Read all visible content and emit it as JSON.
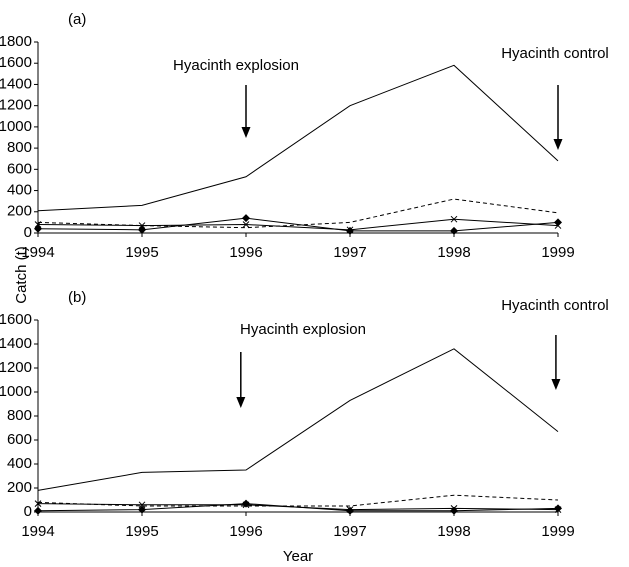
{
  "axis_labels": {
    "y": "Catch (t)",
    "x": "Year"
  },
  "chart_data": [
    {
      "type": "line",
      "panel_label": "(a)",
      "x": [
        1994,
        1995,
        1996,
        1997,
        1998,
        1999
      ],
      "xlim": [
        1994,
        1999
      ],
      "xticks": [
        1994,
        1995,
        1996,
        1997,
        1998,
        1999
      ],
      "ylim": [
        0,
        1800
      ],
      "yticks": [
        0,
        200,
        400,
        600,
        800,
        1000,
        1200,
        1400,
        1600,
        1800
      ],
      "series": [
        {
          "color": "#000000",
          "dash": "solid",
          "marker": "none",
          "values": [
            210,
            260,
            530,
            1200,
            1580,
            680
          ]
        },
        {
          "color": "#000000",
          "dash": "dashed",
          "marker": "none",
          "values": [
            100,
            70,
            50,
            100,
            320,
            190
          ]
        },
        {
          "color": "#000000",
          "dash": "solid",
          "marker": "diamond",
          "values": [
            40,
            30,
            140,
            20,
            20,
            100
          ]
        },
        {
          "color": "#000000",
          "dash": "solid",
          "marker": "x",
          "values": [
            80,
            70,
            80,
            30,
            130,
            70
          ]
        }
      ],
      "annotations": [
        {
          "text": "Hyacinth explosion",
          "x": 1996
        },
        {
          "text": "Hyacinth control",
          "x": 1999
        }
      ]
    },
    {
      "type": "line",
      "panel_label": "(b)",
      "x": [
        1994,
        1995,
        1996,
        1997,
        1998,
        1999
      ],
      "xlim": [
        1994,
        1999
      ],
      "xticks": [
        1994,
        1995,
        1996,
        1997,
        1998,
        1999
      ],
      "ylim": [
        0,
        1600
      ],
      "yticks": [
        0,
        200,
        400,
        600,
        800,
        1000,
        1200,
        1400,
        1600
      ],
      "series": [
        {
          "color": "#000000",
          "dash": "solid",
          "marker": "none",
          "values": [
            180,
            330,
            350,
            930,
            1360,
            670
          ]
        },
        {
          "color": "#000000",
          "dash": "dashed",
          "marker": "none",
          "values": [
            80,
            50,
            50,
            50,
            140,
            100
          ]
        },
        {
          "color": "#000000",
          "dash": "solid",
          "marker": "diamond",
          "values": [
            10,
            20,
            70,
            10,
            10,
            30
          ]
        },
        {
          "color": "#000000",
          "dash": "solid",
          "marker": "x",
          "values": [
            70,
            60,
            60,
            20,
            30,
            20
          ]
        }
      ],
      "annotations": [
        {
          "text": "Hyacinth explosion",
          "x": 1995.95
        },
        {
          "text": "Hyacinth control",
          "x": 1998.98
        }
      ]
    }
  ]
}
